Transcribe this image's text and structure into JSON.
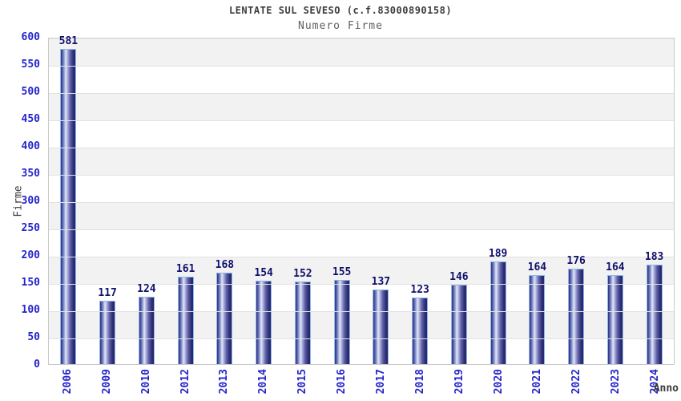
{
  "chart_data": {
    "type": "bar",
    "title": "LENTATE SUL SEVESO (c.f.83000890158)",
    "subtitle": "Numero Firme",
    "xlabel": "Anno",
    "ylabel": "Firme",
    "categories": [
      "2006",
      "2009",
      "2010",
      "2012",
      "2013",
      "2014",
      "2015",
      "2016",
      "2017",
      "2018",
      "2019",
      "2020",
      "2021",
      "2022",
      "2023",
      "2024"
    ],
    "values": [
      581,
      117,
      124,
      161,
      168,
      154,
      152,
      155,
      137,
      123,
      146,
      189,
      164,
      176,
      164,
      183
    ],
    "ylim": [
      0,
      600
    ],
    "ytick_step": 50,
    "yticks": [
      600,
      550,
      500,
      450,
      400,
      350,
      300,
      250,
      200,
      150,
      100,
      50,
      0
    ],
    "grid": true,
    "legend": false,
    "band_fill": "alternating horizontal bands every 50 units"
  },
  "colors": {
    "tick_label_blue": "#2424cc",
    "value_label_navy": "#10106e",
    "title_gray": "#3c3c3c",
    "subtitle_gray": "#5f5f5f",
    "band_gray": "#f2f2f2",
    "gridline": "#e2e2e2",
    "plot_border": "#c9c9c9",
    "bar_border_lightblue": "#8cb8e8",
    "bar_dark": "#2c2c74",
    "bar_highlight": "#e4e8f7"
  }
}
